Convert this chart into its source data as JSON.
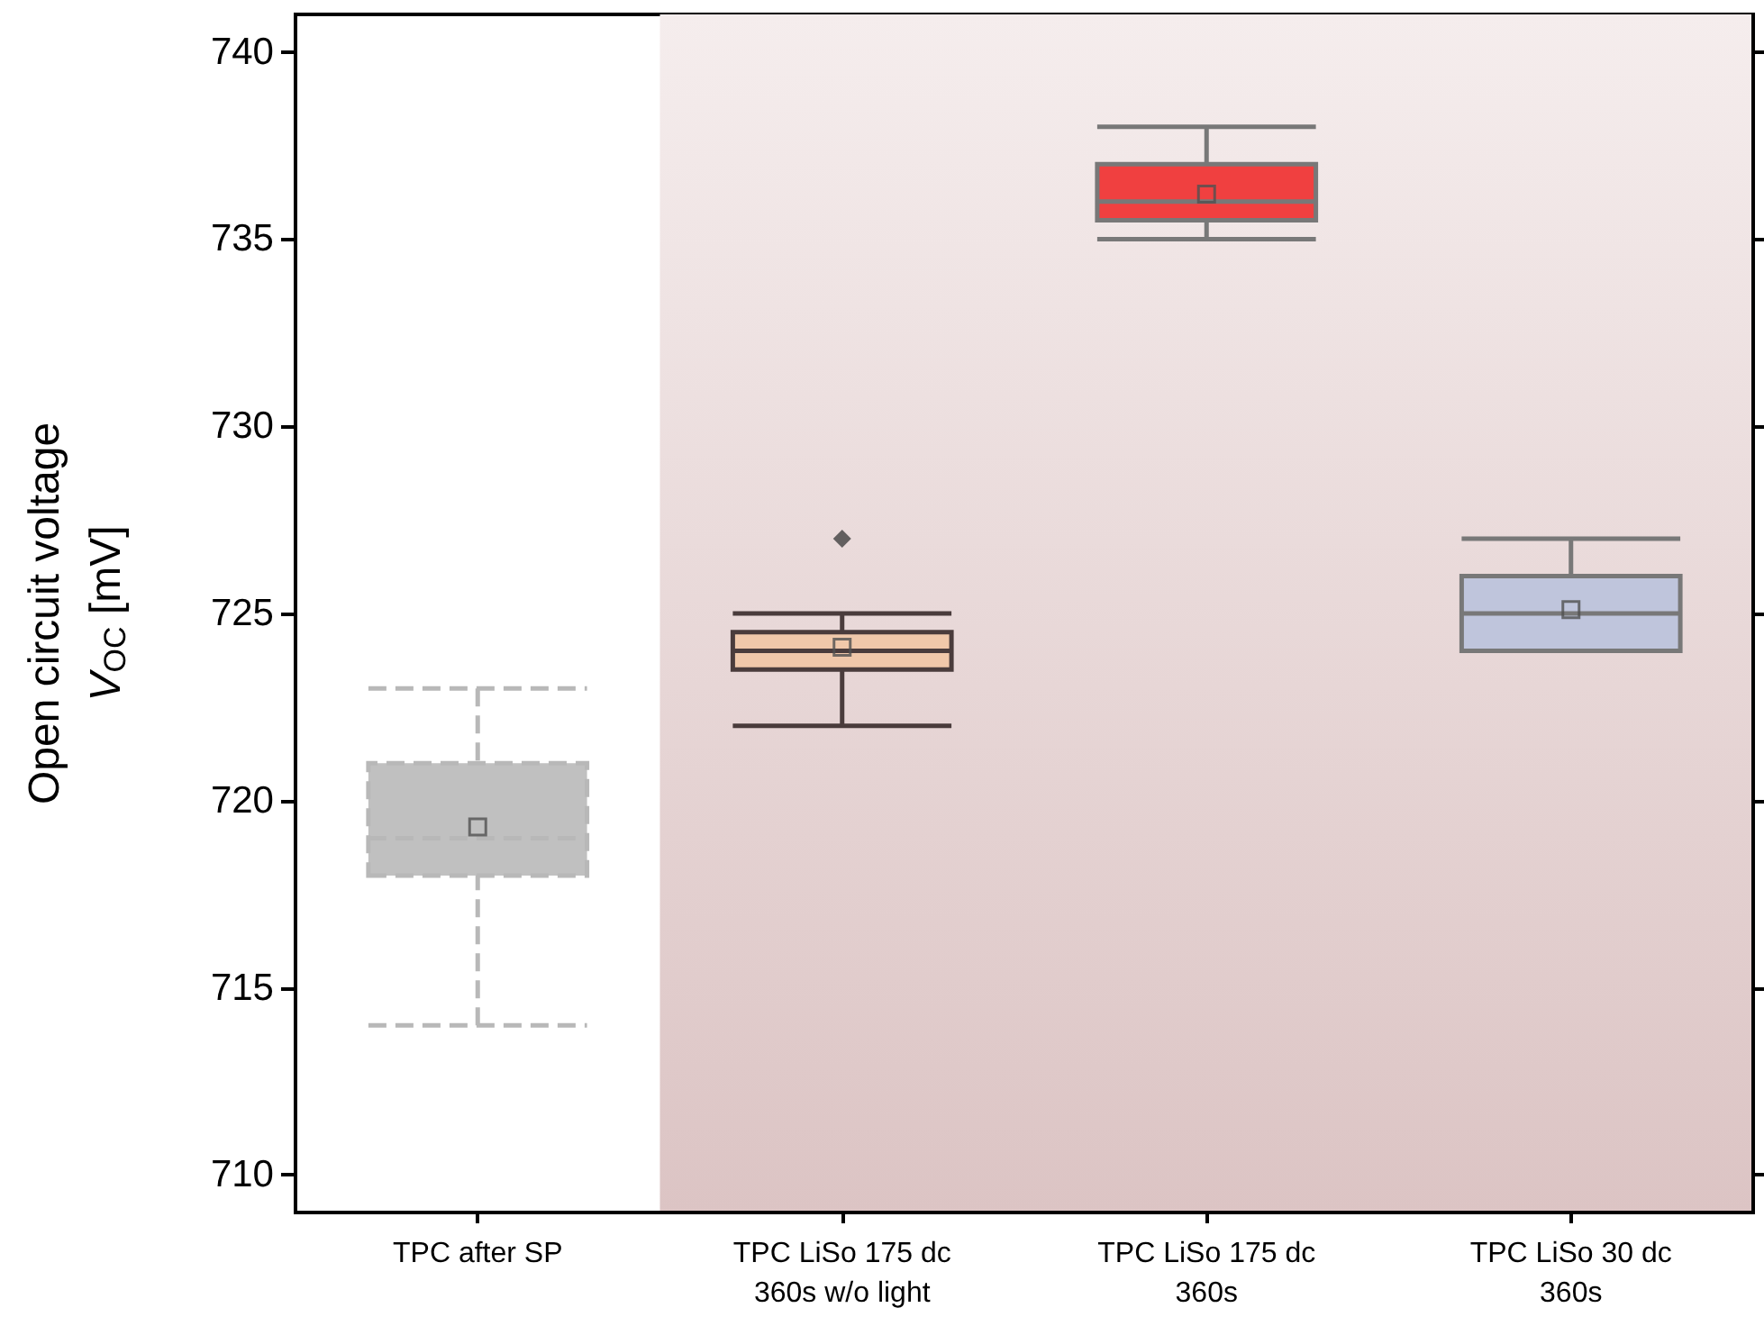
{
  "chart_data": {
    "type": "box",
    "ylabel": "Open circuit voltage\nV$_{OC}$ [mV]",
    "categories": [
      "TPC after SP",
      "TPC LiSo 175 dc\n360s w/o light",
      "TPC LiSo 175 dc\n360s",
      "TPC LiSo 30 dc\n360s"
    ],
    "colors": [
      "#c0c0c0",
      "#f0c8aa",
      "#f04040",
      "#bfc5dc"
    ],
    "boxes": [
      {
        "low": 714,
        "q1": 718,
        "median": 719,
        "q3": 721,
        "high": 723,
        "mean": 719.3
      },
      {
        "low": 722,
        "q1": 723.5,
        "median": 724,
        "q3": 724.5,
        "high": 725,
        "mean": 724.1,
        "outliers": [
          727
        ]
      },
      {
        "low": 735,
        "q1": 735.5,
        "median": 736,
        "q3": 737,
        "high": 738,
        "mean": 736.2
      },
      {
        "low": 724,
        "q1": 724,
        "median": 725,
        "q3": 726,
        "high": 727,
        "mean": 725.1
      }
    ],
    "ylim": [
      709,
      741
    ],
    "yticks": [
      710,
      715,
      720,
      725,
      730,
      735,
      740
    ],
    "bands": [
      {
        "axis": "x",
        "from": "TPC LiSo 175 dc\n360s w/o light",
        "to": "TPC LiSo 30 dc\n360s",
        "color": "#dcc4c4"
      }
    ],
    "grid": false
  }
}
